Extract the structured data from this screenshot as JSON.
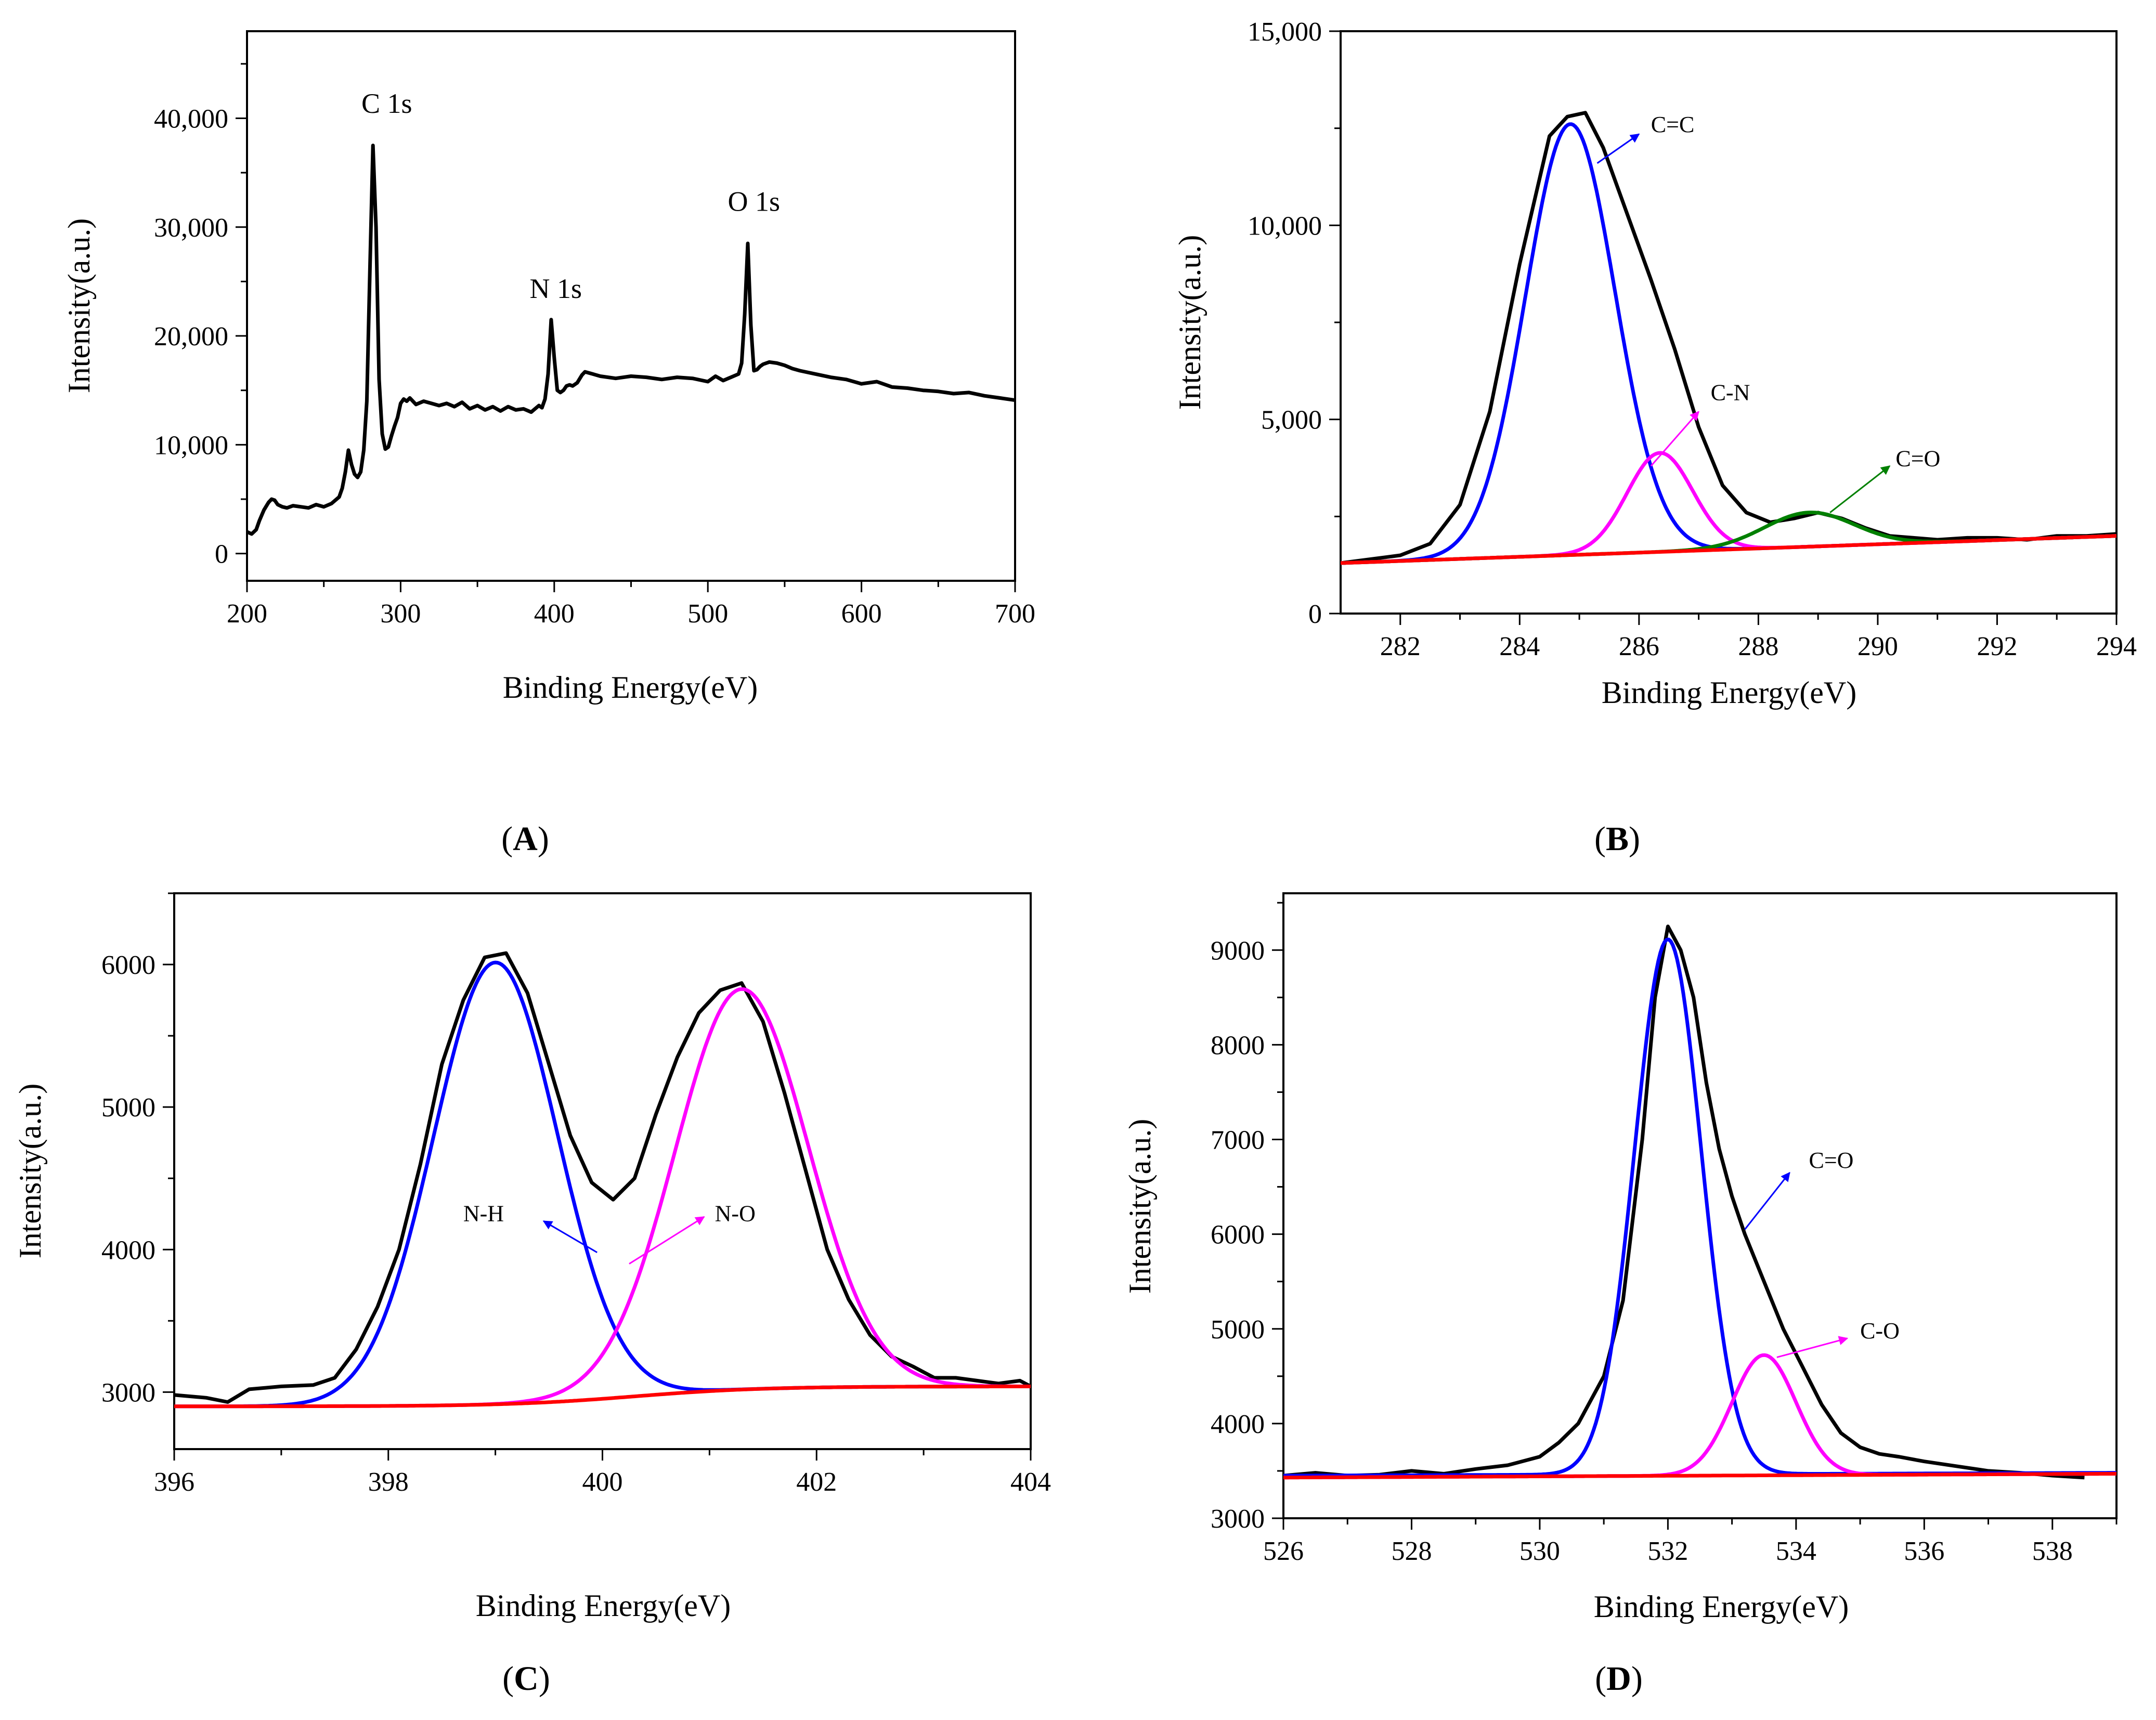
{
  "chart_data": [
    {
      "panel": "A",
      "type": "line",
      "caption_open": "(",
      "caption_letter": "A",
      "caption_close": ")",
      "xlabel": "Binding Energy(eV)",
      "ylabel": "Intensity(a.u.)",
      "xlim": [
        200,
        700
      ],
      "ylim": [
        -2500,
        48000
      ],
      "xticks": [
        200,
        300,
        400,
        500,
        600,
        700
      ],
      "xtick_labels": [
        "200",
        "300",
        "400",
        "500",
        "600",
        "700"
      ],
      "yticks": [
        0,
        10000,
        20000,
        30000,
        40000
      ],
      "ytick_labels": [
        "0",
        "10,000",
        "20,000",
        "30,000",
        "40,000"
      ],
      "series": [
        {
          "name": "Survey",
          "color": "#000000",
          "x": [
            200,
            203,
            206,
            208,
            211,
            214,
            216,
            218,
            220,
            223,
            226,
            230,
            235,
            240,
            245,
            250,
            255,
            260,
            262,
            264,
            266,
            268,
            270,
            272,
            274,
            276,
            278,
            280,
            282,
            284,
            286,
            288,
            290,
            292,
            294,
            296,
            298,
            300,
            302,
            304,
            306,
            310,
            315,
            320,
            325,
            330,
            335,
            340,
            345,
            350,
            355,
            360,
            365,
            370,
            375,
            380,
            385,
            390,
            392,
            394,
            396,
            398,
            400,
            402,
            404,
            406,
            408,
            410,
            412,
            415,
            418,
            420,
            425,
            430,
            440,
            450,
            460,
            470,
            480,
            490,
            500,
            505,
            510,
            515,
            520,
            522,
            524,
            526,
            528,
            530,
            532,
            534,
            536,
            540,
            545,
            550,
            555,
            560,
            570,
            580,
            590,
            600,
            610,
            620,
            630,
            640,
            650,
            660,
            670,
            680,
            690,
            700
          ],
          "y": [
            2000,
            1800,
            2200,
            3000,
            4000,
            4700,
            5000,
            4900,
            4500,
            4300,
            4200,
            4400,
            4300,
            4200,
            4500,
            4300,
            4600,
            5200,
            6000,
            7500,
            9500,
            8200,
            7300,
            7000,
            7500,
            9500,
            14000,
            26000,
            37500,
            30000,
            16000,
            11000,
            9600,
            9800,
            10800,
            11700,
            12500,
            13800,
            14200,
            14000,
            14300,
            13700,
            14000,
            13800,
            13600,
            13800,
            13500,
            13900,
            13300,
            13600,
            13200,
            13500,
            13100,
            13500,
            13200,
            13300,
            13000,
            13600,
            13400,
            14200,
            16500,
            21500,
            18000,
            15000,
            14800,
            15000,
            15400,
            15500,
            15400,
            15700,
            16400,
            16700,
            16500,
            16300,
            16100,
            16300,
            16200,
            16000,
            16200,
            16100,
            15800,
            16300,
            15900,
            16200,
            16500,
            17500,
            22000,
            28500,
            21000,
            16800,
            16900,
            17200,
            17400,
            17600,
            17500,
            17300,
            17000,
            16800,
            16500,
            16200,
            16000,
            15600,
            15800,
            15300,
            15200,
            15000,
            14900,
            14700,
            14800,
            14500,
            14300,
            14100
          ]
        }
      ],
      "annotations": [
        {
          "text": "C 1s",
          "x": 291,
          "y": 40500
        },
        {
          "text": "N 1s",
          "x": 401,
          "y": 23500
        },
        {
          "text": "O 1s",
          "x": 530,
          "y": 31500
        }
      ]
    },
    {
      "panel": "B",
      "type": "line",
      "caption_open": "(",
      "caption_letter": "B",
      "caption_close": ")",
      "xlabel": "Binding Energy(eV)",
      "ylabel": "Intensity(a.u.)",
      "xlim": [
        281,
        294
      ],
      "ylim": [
        0,
        15000
      ],
      "xticks": [
        282,
        284,
        286,
        288,
        290,
        292,
        294
      ],
      "xtick_labels": [
        "282",
        "284",
        "286",
        "288",
        "290",
        "292",
        "294"
      ],
      "yticks": [
        0,
        5000,
        10000,
        15000
      ],
      "ytick_labels": [
        "0",
        "5,000",
        "10,000",
        "15,000"
      ],
      "series": [
        {
          "name": "Measured",
          "color": "#000000",
          "x": [
            281,
            281.5,
            282,
            282.5,
            283,
            283.5,
            284,
            284.5,
            284.8,
            285.1,
            285.4,
            285.8,
            286.2,
            286.6,
            287,
            287.4,
            287.8,
            288.2,
            288.6,
            289,
            289.4,
            289.8,
            290.2,
            290.6,
            291,
            291.5,
            292,
            292.5,
            293,
            293.5,
            294
          ],
          "y": [
            1300,
            1400,
            1500,
            1800,
            2800,
            5200,
            9000,
            12300,
            12800,
            12900,
            12000,
            10300,
            8600,
            6800,
            4800,
            3300,
            2600,
            2350,
            2450,
            2600,
            2450,
            2200,
            2000,
            1950,
            1900,
            1950,
            1950,
            1900,
            2000,
            2000,
            2050
          ]
        },
        {
          "name": "C=C",
          "color": "#0000ff",
          "fn": "gauss",
          "amp": 11100,
          "center": 284.85,
          "sigma": 0.75
        },
        {
          "name": "C-N",
          "color": "#ff00ff",
          "fn": "gauss",
          "amp": 2550,
          "center": 286.35,
          "sigma": 0.55
        },
        {
          "name": "C=O",
          "color": "#008000",
          "fn": "gauss",
          "amp": 880,
          "center": 288.85,
          "sigma": 0.75
        },
        {
          "name": "Baseline",
          "color": "#ff0000",
          "fn": "linear",
          "start": 1300,
          "end": 2000
        }
      ],
      "annotations": [
        {
          "text": "C=C",
          "x": 286.2,
          "y": 12400,
          "arrow_from": [
            285.3,
            11600
          ],
          "arrow_to": [
            286.0,
            12350
          ],
          "color": "#0000ff"
        },
        {
          "text": "C-N",
          "x": 287.2,
          "y": 5500,
          "arrow_from": [
            286.2,
            3800
          ],
          "arrow_to": [
            287.0,
            5200
          ],
          "color": "#ff00ff"
        },
        {
          "text": "C=O",
          "x": 290.3,
          "y": 3800,
          "arrow_from": [
            289.2,
            2600
          ],
          "arrow_to": [
            290.2,
            3800
          ],
          "color": "#008000"
        }
      ]
    },
    {
      "panel": "C",
      "type": "line",
      "caption_open": "(",
      "caption_letter": "C",
      "caption_close": ")",
      "xlabel": "Binding Energy(eV)",
      "ylabel": "Intensity(a.u.)",
      "xlim": [
        396,
        404
      ],
      "ylim": [
        2600,
        6500
      ],
      "xticks": [
        396,
        398,
        400,
        402,
        404
      ],
      "xtick_labels": [
        "396",
        "398",
        "400",
        "402",
        "404"
      ],
      "yticks": [
        3000,
        4000,
        5000,
        6000
      ],
      "ytick_labels": [
        "3000",
        "4000",
        "5000",
        "6000"
      ],
      "series": [
        {
          "name": "Measured",
          "color": "#000000",
          "x": [
            396,
            396.3,
            396.5,
            396.7,
            397,
            397.3,
            397.5,
            397.7,
            397.9,
            398.1,
            398.3,
            398.5,
            398.7,
            398.9,
            399.1,
            399.3,
            399.5,
            399.7,
            399.9,
            400.1,
            400.3,
            400.5,
            400.7,
            400.9,
            401.1,
            401.3,
            401.5,
            401.7,
            401.9,
            402.1,
            402.3,
            402.5,
            402.7,
            402.9,
            403.1,
            403.3,
            403.5,
            403.7,
            403.9,
            404
          ],
          "y": [
            2980,
            2960,
            2930,
            3020,
            3040,
            3050,
            3100,
            3300,
            3600,
            4000,
            4600,
            5300,
            5750,
            6050,
            6080,
            5800,
            5300,
            4800,
            4470,
            4350,
            4500,
            4950,
            5350,
            5660,
            5820,
            5870,
            5600,
            5100,
            4550,
            4000,
            3650,
            3400,
            3250,
            3180,
            3100,
            3100,
            3080,
            3060,
            3080,
            3040
          ]
        },
        {
          "name": "N-H",
          "color": "#0000ff",
          "fn": "gauss",
          "amp": 3100,
          "center": 399.0,
          "sigma": 0.58
        },
        {
          "name": "N-O",
          "color": "#ff00ff",
          "fn": "gauss",
          "amp": 2810,
          "center": 401.3,
          "sigma": 0.62
        },
        {
          "name": "Baseline",
          "color": "#ff0000",
          "fn": "sigmoid",
          "start": 2900,
          "end": 3040,
          "mid": 400.3,
          "width": 0.6
        }
      ],
      "annotations": [
        {
          "text": "N-H",
          "x": 398.7,
          "y": 4200,
          "arrow_from": [
            399.95,
            3980
          ],
          "arrow_to": [
            399.45,
            4200
          ],
          "color": "#0000ff"
        },
        {
          "text": "N-O",
          "x": 401.05,
          "y": 4200,
          "arrow_from": [
            400.25,
            3900
          ],
          "arrow_to": [
            400.95,
            4230
          ],
          "color": "#ff00ff"
        }
      ]
    },
    {
      "panel": "D",
      "type": "line",
      "caption_open": "(",
      "caption_letter": "D",
      "caption_close": ")",
      "xlabel": "Binding Energy(eV)",
      "ylabel": "Intensity(a.u.)",
      "xlim": [
        526,
        539
      ],
      "ylim": [
        3000,
        9600
      ],
      "xticks": [
        526,
        528,
        530,
        532,
        534,
        536,
        538
      ],
      "xtick_labels": [
        "526",
        "528",
        "530",
        "532",
        "534",
        "536",
        "538"
      ],
      "yticks": [
        3000,
        4000,
        5000,
        6000,
        7000,
        8000,
        9000
      ],
      "ytick_labels": [
        "3000",
        "4000",
        "5000",
        "6000",
        "7000",
        "8000",
        "9000"
      ],
      "series": [
        {
          "name": "Measured",
          "color": "#000000",
          "x": [
            526,
            526.5,
            527,
            527.5,
            528,
            528.5,
            529,
            529.5,
            530,
            530.3,
            530.6,
            531,
            531.3,
            531.6,
            531.8,
            532,
            532.2,
            532.4,
            532.6,
            532.8,
            533,
            533.2,
            533.5,
            533.8,
            534.1,
            534.4,
            534.7,
            535,
            535.3,
            535.6,
            536,
            536.5,
            537,
            537.5,
            538,
            538.5
          ],
          "y": [
            3450,
            3480,
            3450,
            3460,
            3500,
            3470,
            3520,
            3560,
            3650,
            3800,
            4000,
            4500,
            5300,
            7000,
            8500,
            9250,
            9000,
            8500,
            7600,
            6900,
            6400,
            6000,
            5500,
            5000,
            4600,
            4200,
            3900,
            3750,
            3680,
            3650,
            3600,
            3550,
            3500,
            3480,
            3450,
            3430
          ]
        },
        {
          "name": "C=O",
          "color": "#0000ff",
          "fn": "gauss_slope",
          "amp": 5650,
          "center": 532.0,
          "sigma": 0.52,
          "base_start": 3450,
          "base_end": 3480
        },
        {
          "name": "C-O",
          "color": "#ff00ff",
          "fn": "gauss",
          "amp": 1270,
          "center": 533.5,
          "sigma": 0.5
        },
        {
          "name": "Baseline",
          "color": "#ff0000",
          "fn": "linear",
          "start": 3430,
          "end": 3470
        }
      ],
      "annotations": [
        {
          "text": "C=O",
          "x": 534.2,
          "y": 6700,
          "arrow_from": [
            533.2,
            6050
          ],
          "arrow_to": [
            533.9,
            6650
          ],
          "color": "#0000ff"
        },
        {
          "text": "C-O",
          "x": 535.0,
          "y": 4900,
          "arrow_from": [
            533.7,
            4700
          ],
          "arrow_to": [
            534.8,
            4900
          ],
          "color": "#ff00ff"
        }
      ]
    }
  ]
}
